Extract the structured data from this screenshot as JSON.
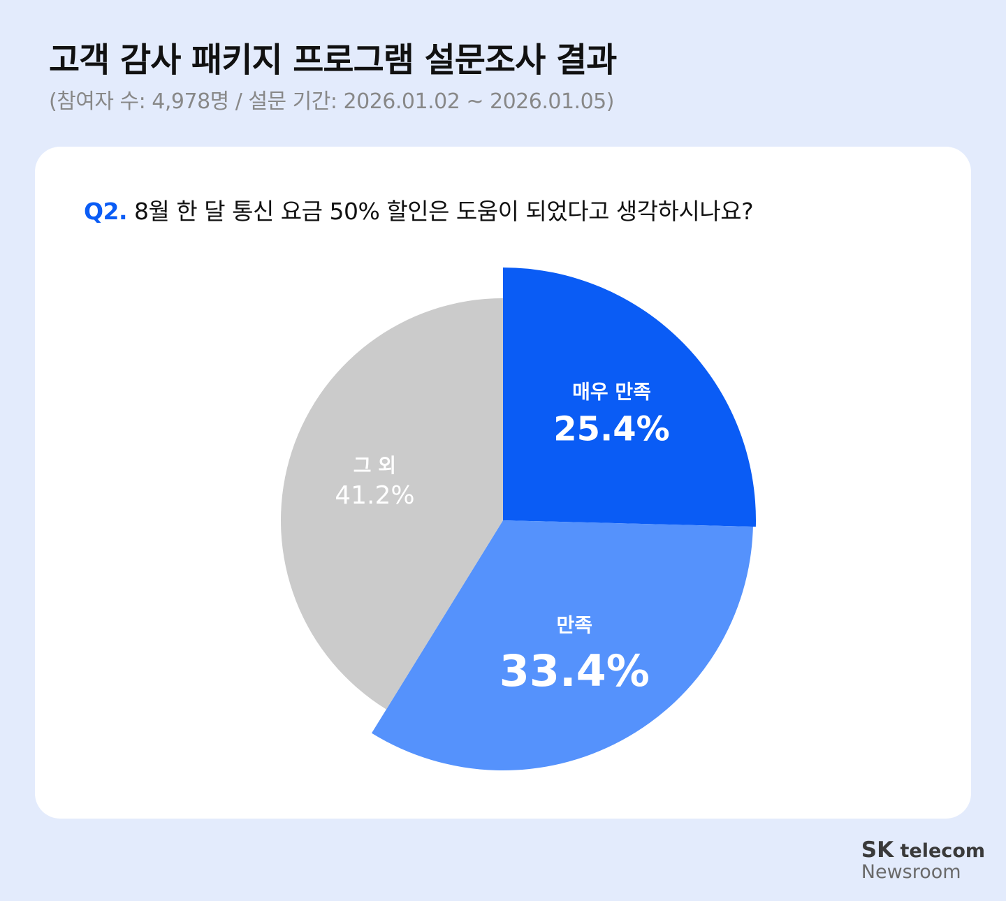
{
  "header": {
    "title": "고객 감사 패키지 프로그램 설문조사 결과",
    "subtitle": "(참여자 수: 4,978명 / 설문 기간: 2026.01.02 ~ 2026.01.05)"
  },
  "question": {
    "number": "Q2.",
    "text": " 8월 한 달 통신 요금 50% 할인은 도움이 되었다고 생각하시나요?"
  },
  "chart_data": {
    "type": "pie",
    "series": [
      {
        "name": "매우 만족",
        "value": 25.4,
        "label": "25.4%",
        "color": "#0a5cf5",
        "text_color": "#ffffff",
        "emphasis": "strong"
      },
      {
        "name": "만족",
        "value": 33.4,
        "label": "33.4%",
        "color": "#5592fc",
        "text_color": "#ffffff",
        "emphasis": "strongest"
      },
      {
        "name": "그 외",
        "value": 41.2,
        "label": "41.2%",
        "color": "#cbcbcb",
        "text_color": "#ffffff",
        "emphasis": "normal"
      }
    ],
    "start_angle_deg": 0,
    "direction": "clockwise",
    "exploded_slices": [
      "매우 만족",
      "만족"
    ]
  },
  "brand": {
    "line1_sk": "SK",
    "line1_rest": " telecom",
    "line2": "Newsroom"
  }
}
